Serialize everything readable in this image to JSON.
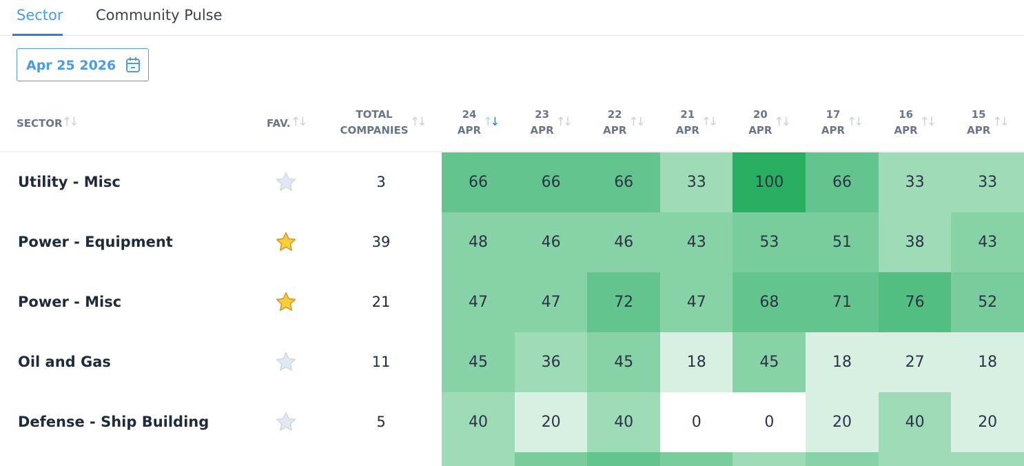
{
  "tabs": [
    {
      "label": "Sector",
      "active": true
    },
    {
      "label": "Community Pulse",
      "active": false
    }
  ],
  "date_picker": {
    "value": "Apr 25 2026",
    "icon": "calendar-icon"
  },
  "columns": {
    "sector": "SECTOR",
    "fav": "FAV.",
    "total_line1": "TOTAL",
    "total_line2": "COMPANIES",
    "dates": [
      {
        "day": "24",
        "month": "APR",
        "sorted": "desc"
      },
      {
        "day": "23",
        "month": "APR"
      },
      {
        "day": "22",
        "month": "APR"
      },
      {
        "day": "21",
        "month": "APR"
      },
      {
        "day": "20",
        "month": "APR"
      },
      {
        "day": "17",
        "month": "APR"
      },
      {
        "day": "16",
        "month": "APR"
      },
      {
        "day": "15",
        "month": "APR"
      }
    ]
  },
  "heat_color": "#27ae60",
  "rows": [
    {
      "sector": "Utility - Misc",
      "favorite": false,
      "total": "3",
      "values": [
        66,
        66,
        66,
        33,
        100,
        66,
        33,
        33
      ]
    },
    {
      "sector": "Power - Equipment",
      "favorite": true,
      "total": "39",
      "values": [
        48,
        46,
        46,
        43,
        53,
        51,
        38,
        43
      ]
    },
    {
      "sector": "Power - Misc",
      "favorite": true,
      "total": "21",
      "values": [
        47,
        47,
        72,
        47,
        68,
        71,
        76,
        52
      ]
    },
    {
      "sector": "Oil and Gas",
      "favorite": false,
      "total": "11",
      "values": [
        45,
        36,
        45,
        18,
        45,
        18,
        27,
        18
      ]
    },
    {
      "sector": "Defense - Ship Building",
      "favorite": false,
      "total": "5",
      "values": [
        40,
        20,
        40,
        0,
        0,
        20,
        40,
        20
      ]
    }
  ]
}
